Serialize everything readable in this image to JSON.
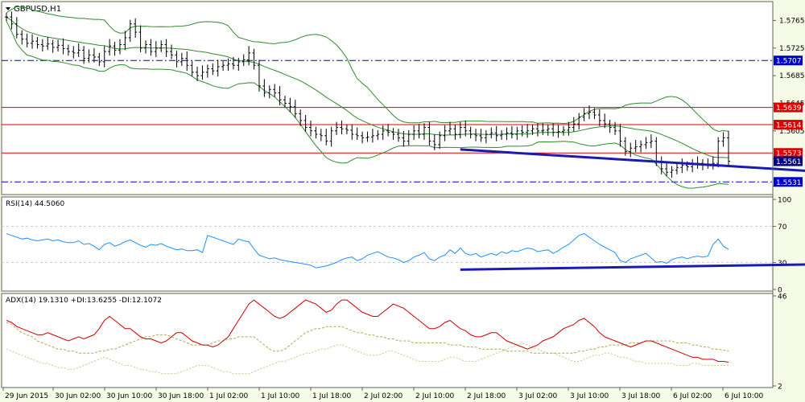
{
  "chart_data": {
    "type": "line",
    "title": "GBPUSD,H1",
    "symbol": "GBPUSD",
    "timeframe": "H1",
    "main": {
      "y_ticks": [
        1.5765,
        1.5725,
        1.5685,
        1.5645,
        1.5605,
        1.5565,
        1.5525
      ],
      "visible_tick_labels": [
        "1.5765",
        "1.5725",
        "1.5685",
        "1.5645",
        "1.5605"
      ],
      "ylim": [
        1.5515,
        1.579
      ],
      "price_labels": [
        {
          "value": 1.5707,
          "text": "1.5707",
          "style": "dashdot",
          "line_color": "#0000cc",
          "bg": "#0000cc"
        },
        {
          "value": 1.5639,
          "text": "1.5639",
          "style": "solid",
          "line_color": "#dd0000",
          "bg": "#dd0000"
        },
        {
          "value": 1.5614,
          "text": "1.5614",
          "style": "solid",
          "line_color": "#dd0000",
          "bg": "#dd0000"
        },
        {
          "value": 1.5573,
          "text": "1.5573",
          "style": "solid",
          "line_color": "#dd0000",
          "bg": "#dd0000"
        },
        {
          "value": 1.5561,
          "text": "1.5561",
          "style": "none",
          "line_color": "#000000",
          "bg": "#000080"
        },
        {
          "value": 1.5531,
          "text": "1.5531",
          "style": "dashdot",
          "line_color": "#0000cc",
          "bg": "#0000cc"
        }
      ],
      "close_series": [
        1.577,
        1.576,
        1.5745,
        1.5738,
        1.5732,
        1.5735,
        1.573,
        1.5728,
        1.5731,
        1.5726,
        1.5729,
        1.5724,
        1.572,
        1.5718,
        1.5722,
        1.571,
        1.5715,
        1.5712,
        1.5705,
        1.572,
        1.5728,
        1.5722,
        1.573,
        1.574,
        1.576,
        1.5748,
        1.5725,
        1.573,
        1.572,
        1.5725,
        1.573,
        1.572,
        1.5715,
        1.5705,
        1.571,
        1.57,
        1.569,
        1.5685,
        1.569,
        1.5695,
        1.5692,
        1.5698,
        1.57,
        1.5702,
        1.57,
        1.5705,
        1.5708,
        1.5718,
        1.57,
        1.567,
        1.566,
        1.5665,
        1.566,
        1.565,
        1.5645,
        1.564,
        1.563,
        1.562,
        1.561,
        1.5605,
        1.56,
        1.5598,
        1.559,
        1.5605,
        1.561,
        1.5608,
        1.5606,
        1.56,
        1.5598,
        1.5595,
        1.5596,
        1.5598,
        1.56,
        1.5605,
        1.5603,
        1.56,
        1.5595,
        1.559,
        1.56,
        1.5605,
        1.56,
        1.561,
        1.559,
        1.5585,
        1.5598,
        1.5605,
        1.5608,
        1.56,
        1.561,
        1.5605,
        1.56,
        1.5598,
        1.5595,
        1.56,
        1.5602,
        1.5598,
        1.56,
        1.5602,
        1.56,
        1.5605,
        1.5603,
        1.5605,
        1.5608,
        1.5605,
        1.5606,
        1.5608,
        1.5603,
        1.5604,
        1.5606,
        1.561,
        1.5615,
        1.5625,
        1.563,
        1.5632,
        1.5628,
        1.562,
        1.5615,
        1.561,
        1.5605,
        1.559,
        1.5575,
        1.558,
        1.5582,
        1.5585,
        1.5588,
        1.559,
        1.556,
        1.555,
        1.5545,
        1.5548,
        1.5552,
        1.5555,
        1.5553,
        1.5556,
        1.5558,
        1.5556,
        1.5557,
        1.5558,
        1.559,
        1.5595,
        1.5561
      ],
      "trendline": {
        "x": [
          88,
          192
        ],
        "y": [
          1.5578,
          1.553
        ]
      },
      "projection_curve": {
        "x": [
          191,
          194,
          197,
          200,
          204,
          207,
          209,
          212,
          215,
          217
        ],
        "y": [
          1.557,
          1.556,
          1.5543,
          1.556,
          1.559,
          1.5615,
          1.562,
          1.56,
          1.556,
          1.554
        ]
      },
      "arrow": {
        "x": 214,
        "y": 1.5532
      }
    },
    "rsi": {
      "label": "RSI(14) 44.5060",
      "levels": [
        100,
        70,
        30,
        0
      ],
      "ylim": [
        0,
        100
      ],
      "values": [
        62,
        60,
        58,
        56,
        57,
        55,
        54,
        55,
        56,
        54,
        55,
        53,
        52,
        52,
        54,
        50,
        51,
        48,
        44,
        50,
        52,
        48,
        50,
        53,
        55,
        52,
        49,
        47,
        50,
        49,
        51,
        48,
        46,
        44,
        45,
        43,
        43,
        44,
        41,
        60,
        58,
        56,
        54,
        52,
        50,
        56,
        54,
        53,
        45,
        38,
        36,
        34,
        35,
        33,
        32,
        31,
        30,
        29,
        28,
        27,
        24,
        25,
        26,
        28,
        30,
        33,
        35,
        36,
        32,
        34,
        38,
        40,
        42,
        39,
        36,
        35,
        33,
        30,
        32,
        36,
        38,
        41,
        34,
        32,
        36,
        38,
        44,
        40,
        46,
        40,
        38,
        40,
        36,
        38,
        40,
        38,
        42,
        40,
        43,
        42,
        44,
        46,
        45,
        42,
        43,
        44,
        40,
        43,
        47,
        50,
        55,
        60,
        62,
        58,
        54,
        50,
        47,
        44,
        41,
        32,
        30,
        34,
        36,
        38,
        40,
        35,
        30,
        31,
        29,
        33,
        35,
        36,
        34,
        36,
        37,
        36,
        37,
        50,
        56,
        48,
        44.5
      ],
      "trendline": {
        "x": [
          88,
          182
        ],
        "y": [
          22,
          30
        ]
      }
    },
    "adx": {
      "label": "ADX(14) 19.1310 +DI:13.6255 -DI:12.1072",
      "levels": [
        46,
        2
      ],
      "ylim": [
        2,
        46
      ],
      "adx": [
        33,
        32,
        30,
        28,
        27,
        26,
        24,
        23,
        22,
        21,
        20,
        20,
        19,
        19,
        18,
        18,
        18,
        18,
        19,
        19,
        20,
        20,
        21,
        22,
        23,
        24,
        25,
        26,
        26,
        27,
        27,
        27,
        26,
        25,
        24,
        23,
        22,
        22,
        22,
        22,
        23,
        24,
        24,
        25,
        25,
        26,
        26,
        26,
        26,
        24,
        22,
        20,
        19,
        19,
        20,
        22,
        24,
        26,
        28,
        29,
        30,
        30,
        31,
        31,
        31,
        31,
        30,
        29,
        28,
        28,
        27,
        27,
        26,
        26,
        25,
        25,
        24,
        24,
        24,
        23,
        23,
        23,
        23,
        23,
        23,
        23,
        22,
        22,
        22,
        21,
        21,
        21,
        20,
        20,
        20,
        20,
        20,
        19,
        19,
        19,
        19,
        19,
        18,
        18,
        18,
        18,
        18,
        18,
        18,
        18,
        18,
        19,
        19,
        20,
        20,
        21,
        21,
        22,
        22,
        22,
        22,
        23,
        23,
        23,
        24,
        24,
        24,
        24,
        24,
        24,
        23,
        23,
        23,
        22,
        22,
        21,
        21,
        20,
        20,
        19.5,
        19.1
      ],
      "plus_di": [
        34,
        33,
        31,
        30,
        29,
        28,
        27,
        27,
        28,
        27,
        26,
        25,
        24,
        25,
        26,
        25,
        26,
        27,
        30,
        34,
        36,
        34,
        32,
        30,
        30,
        28,
        26,
        25,
        25,
        24,
        23,
        24,
        26,
        28,
        28,
        26,
        24,
        23,
        22,
        22,
        21,
        22,
        24,
        26,
        30,
        34,
        38,
        42,
        44,
        42,
        40,
        38,
        36,
        35,
        36,
        38,
        40,
        42,
        44,
        43,
        42,
        40,
        38,
        39,
        42,
        44,
        44,
        42,
        40,
        38,
        37,
        36,
        36,
        38,
        40,
        42,
        41,
        40,
        38,
        36,
        34,
        32,
        30,
        30,
        31,
        33,
        34,
        32,
        30,
        29,
        27,
        26,
        26,
        27,
        28,
        28,
        26,
        24,
        23,
        22,
        21,
        20,
        21,
        22,
        24,
        25,
        26,
        28,
        30,
        31,
        32,
        34,
        35,
        33,
        31,
        28,
        26,
        25,
        24,
        23,
        22,
        21,
        22,
        23,
        24,
        24,
        23,
        22,
        21,
        20,
        19,
        18,
        17,
        16,
        16,
        15,
        15,
        15,
        14,
        14,
        13.6
      ],
      "minus_di": [
        20,
        19,
        18,
        17,
        16,
        15,
        14,
        13,
        13,
        12,
        11,
        11,
        10,
        10,
        11,
        12,
        13,
        14,
        15,
        16,
        15,
        14,
        13,
        12,
        12,
        11,
        10,
        10,
        9,
        9,
        8,
        8,
        8,
        8,
        9,
        10,
        11,
        12,
        12,
        12,
        11,
        10,
        9,
        9,
        8,
        8,
        8,
        8,
        9,
        10,
        11,
        12,
        13,
        14,
        14,
        15,
        16,
        17,
        18,
        18,
        19,
        20,
        20,
        21,
        22,
        22,
        21,
        20,
        19,
        18,
        17,
        17,
        17,
        18,
        19,
        19,
        18,
        17,
        16,
        15,
        14,
        14,
        14,
        14,
        14,
        15,
        16,
        16,
        15,
        14,
        14,
        14,
        15,
        16,
        17,
        18,
        19,
        20,
        21,
        22,
        23,
        22,
        21,
        20,
        19,
        18,
        18,
        17,
        16,
        15,
        14,
        14,
        15,
        16,
        17,
        17,
        18,
        18,
        17,
        16,
        16,
        15,
        14,
        14,
        13,
        13,
        13,
        13,
        13,
        13,
        12,
        12,
        12,
        13,
        13,
        12,
        12,
        12,
        12,
        12,
        12.1
      ]
    },
    "x_labels": [
      "29 Jun 2015",
      "30 Jun 02:00",
      "30 Jun 10:00",
      "30 Jun 18:00",
      "1 Jul 02:00",
      "1 Jul 10:00",
      "1 Jul 18:00",
      "2 Jul 02:00",
      "2 Jul 10:00",
      "2 Jul 18:00",
      "3 Jul 02:00",
      "3 Jul 10:00",
      "3 Jul 18:00",
      "6 Jul 02:00",
      "6 Jul 10:00"
    ],
    "colors": {
      "bg": "#ffffff",
      "panel_bg": "#ffffff",
      "grid": "#c8c8c8",
      "price_bars": "#000000",
      "bollinger": "#2e8b2e",
      "support_line": "#0000cc",
      "resistance_line": "#dd0000",
      "trendline": "#1a1ab4",
      "projection": "#cc0000",
      "rsi": "#1e90ff",
      "adx": "#aaaa55",
      "plus_di": "#cc0000",
      "minus_di": "#c8c888"
    }
  }
}
